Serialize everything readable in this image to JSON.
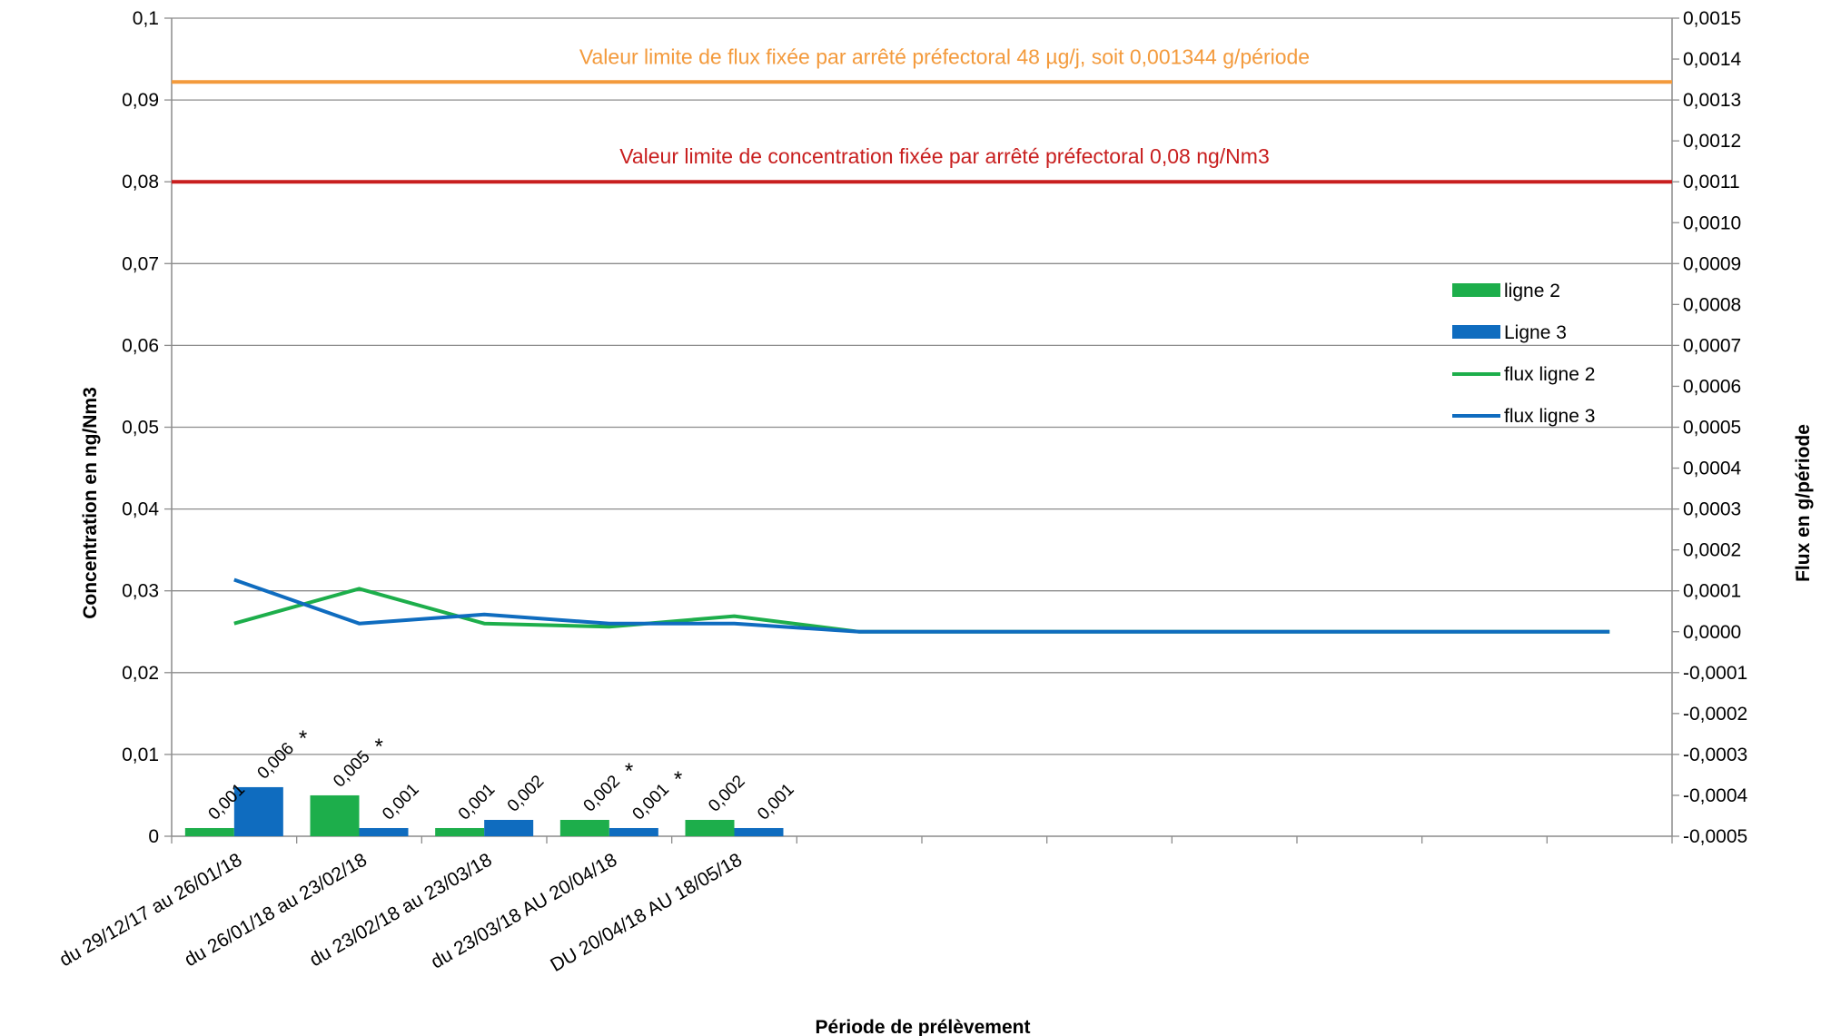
{
  "chart_data": {
    "type": "bar",
    "xlabel": "Période de prélèvement",
    "ylabel_left": "Concentration en ng/Nm3",
    "ylabel_right": "Flux en g/période",
    "ylim_left": [
      0,
      0.1
    ],
    "ylim_right": [
      -0.0005,
      0.0015
    ],
    "yticks_left": [
      "0",
      "0,01",
      "0,02",
      "0,03",
      "0,04",
      "0,05",
      "0,06",
      "0,07",
      "0,08",
      "0,09",
      "0,1"
    ],
    "yticks_right": [
      "-0,0005",
      "-0,0004",
      "-0,0003",
      "-0,0002",
      "-0,0001",
      "0,0000",
      "0,0001",
      "0,0002",
      "0,0003",
      "0,0004",
      "0,0005",
      "0,0006",
      "0,0007",
      "0,0008",
      "0,0009",
      "0,0010",
      "0,0011",
      "0,0012",
      "0,0013",
      "0,0014",
      "0,0015"
    ],
    "grid": true,
    "legend_position": "right",
    "num_slots": 12,
    "categories": [
      "du 29/12/17 au  26/01/18",
      "du 26/01/18 au 23/02/18",
      "du 23/02/18 au 23/03/18",
      "du 23/03/18 AU 20/04/18",
      "DU 20/04/18 AU 18/05/18"
    ],
    "bar_series": [
      {
        "name": "ligne 2",
        "color": "#1DAE4B",
        "values": [
          0.001,
          0.005,
          0.001,
          0.002,
          0.002
        ],
        "labels": [
          "0,001",
          "0,005",
          "0,001",
          "0,002",
          "0,002"
        ],
        "flags": [
          "",
          "*",
          "",
          "*",
          ""
        ]
      },
      {
        "name": "Ligne 3",
        "color": "#0F6CBF",
        "values": [
          0.006,
          0.001,
          0.002,
          0.001,
          0.001
        ],
        "labels": [
          "0,006",
          "0,001",
          "0,002",
          "0,001",
          "0,001"
        ],
        "flags": [
          "*",
          "",
          "",
          "*",
          ""
        ]
      }
    ],
    "line_series": [
      {
        "name": "flux ligne 2",
        "color": "#1DAE4B",
        "axis": "right",
        "values": [
          2e-05,
          0.000105,
          2e-05,
          1.2e-05,
          3.8e-05,
          0,
          0,
          0,
          0,
          0,
          0,
          0
        ]
      },
      {
        "name": "flux ligne 3",
        "color": "#0F6CBF",
        "axis": "right",
        "values": [
          0.000127,
          2e-05,
          4.2e-05,
          2e-05,
          2e-05,
          0,
          0,
          0,
          0,
          0,
          0,
          0
        ]
      }
    ],
    "reference_lines": [
      {
        "label": "Valeur limite de flux fixée par arrêté préfectoral 48 µg/j, soit 0,001344 g/période",
        "axis": "right",
        "value": 0.001344,
        "color": "#F39A3C"
      },
      {
        "label": "Valeur limite  de concentration fixée par arrêté préfectoral 0,08 ng/Nm3",
        "axis": "left",
        "value": 0.08,
        "color": "#C81E1E"
      }
    ]
  }
}
